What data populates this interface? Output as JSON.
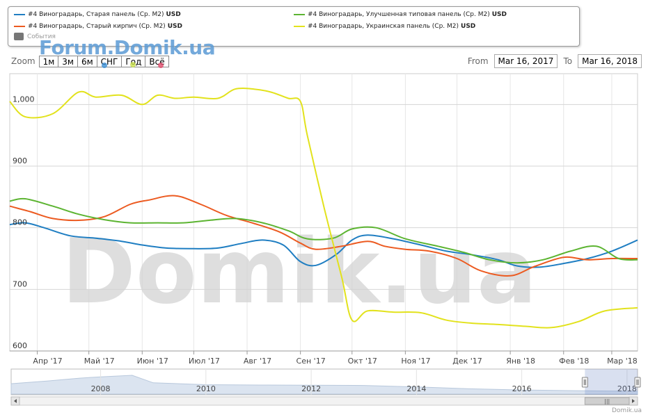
{
  "legend": {
    "items": [
      {
        "label": "#4 Виноградарь, Старая панель (Ср. М2)",
        "unit": "USD",
        "color": "#1f7ec2"
      },
      {
        "label": "#4 Виноградарь, Старый кирпич (Ср. М2)",
        "unit": "USD",
        "color": "#ec5a20"
      },
      {
        "label": "#4 Виноградарь, Улучшенная типовая панель (Ср. М2)",
        "unit": "USD",
        "color": "#5cb431"
      },
      {
        "label": "#4 Виноградарь, Украинская панель (Ср. М2)",
        "unit": "USD",
        "color": "#e2e21c"
      }
    ],
    "events_label": "События"
  },
  "watermark_small": "Forum.Domik.ua",
  "watermark_big": "Domik.ua",
  "zoom": {
    "label": "Zoom",
    "buttons": [
      "1м",
      "3м",
      "6м",
      "СНГ",
      "Год",
      "Всё"
    ]
  },
  "range": {
    "from_label": "From",
    "from_value": "Mar 16, 2017",
    "to_label": "To",
    "to_value": "Mar 16, 2018"
  },
  "credit": "Domik.ua",
  "chart_data": {
    "type": "line",
    "x_ticks": [
      "Апр '17",
      "Май '17",
      "Июн '17",
      "Июл '17",
      "Авг '17",
      "Сен '17",
      "Окт '17",
      "Ноя '17",
      "Дек '17",
      "Янв '18",
      "Фев '18",
      "Мар '18"
    ],
    "x_tick_dates": [
      "2017-04-01",
      "2017-05-01",
      "2017-06-01",
      "2017-07-01",
      "2017-08-01",
      "2017-09-01",
      "2017-10-01",
      "2017-11-01",
      "2017-12-01",
      "2018-01-01",
      "2018-02-01",
      "2018-03-01"
    ],
    "x_range": [
      "2017-03-16",
      "2018-03-16"
    ],
    "y_ticks": [
      "600",
      "700",
      "800",
      "900",
      "1,000"
    ],
    "y_values": [
      600,
      700,
      800,
      900,
      1000
    ],
    "ylim": [
      600,
      1050
    ],
    "grid": true,
    "legend_position": "top",
    "series": [
      {
        "name": "#4 Виноградарь, Старая панель (Ср. М2) USD",
        "color": "#1f7ec2",
        "dates": [
          "2017-03-16",
          "2017-03-25",
          "2017-04-05",
          "2017-04-20",
          "2017-05-05",
          "2017-05-20",
          "2017-06-01",
          "2017-06-15",
          "2017-07-01",
          "2017-07-15",
          "2017-07-28",
          "2017-08-10",
          "2017-08-22",
          "2017-09-01",
          "2017-09-10",
          "2017-09-22",
          "2017-10-01",
          "2017-10-10",
          "2017-10-25",
          "2017-11-10",
          "2017-11-25",
          "2017-12-10",
          "2017-12-25",
          "2018-01-05",
          "2018-01-18",
          "2018-02-01",
          "2018-02-15",
          "2018-03-01",
          "2018-03-16"
        ],
        "values": [
          805,
          808,
          800,
          787,
          783,
          778,
          772,
          767,
          766,
          767,
          774,
          780,
          772,
          745,
          739,
          757,
          780,
          788,
          782,
          772,
          762,
          756,
          748,
          738,
          736,
          742,
          750,
          762,
          780
        ]
      },
      {
        "name": "#4 Виноградарь, Старый кирпич (Ср. М2) USD",
        "color": "#ec5a20",
        "dates": [
          "2017-03-16",
          "2017-03-28",
          "2017-04-10",
          "2017-04-25",
          "2017-05-10",
          "2017-05-25",
          "2017-06-05",
          "2017-06-20",
          "2017-07-05",
          "2017-07-20",
          "2017-08-05",
          "2017-08-20",
          "2017-09-01",
          "2017-09-10",
          "2017-09-25",
          "2017-10-10",
          "2017-10-20",
          "2017-11-01",
          "2017-11-15",
          "2017-12-01",
          "2017-12-15",
          "2018-01-01",
          "2018-01-15",
          "2018-02-01",
          "2018-02-15",
          "2018-03-01",
          "2018-03-16"
        ],
        "values": [
          835,
          826,
          815,
          812,
          818,
          838,
          845,
          852,
          838,
          820,
          807,
          793,
          775,
          765,
          770,
          778,
          770,
          765,
          762,
          750,
          730,
          722,
          737,
          752,
          748,
          750,
          750
        ]
      },
      {
        "name": "#4 Виноградарь, Улучшенная типовая панель (Ср. М2) USD",
        "color": "#5cb431",
        "dates": [
          "2017-03-16",
          "2017-03-25",
          "2017-04-10",
          "2017-04-25",
          "2017-05-10",
          "2017-05-25",
          "2017-06-10",
          "2017-06-25",
          "2017-07-10",
          "2017-07-25",
          "2017-08-10",
          "2017-08-25",
          "2017-09-05",
          "2017-09-20",
          "2017-10-01",
          "2017-10-15",
          "2017-11-01",
          "2017-11-20",
          "2017-12-05",
          "2017-12-20",
          "2018-01-05",
          "2018-01-20",
          "2018-02-05",
          "2018-02-20",
          "2018-03-05",
          "2018-03-16"
        ],
        "values": [
          843,
          847,
          835,
          822,
          813,
          808,
          808,
          808,
          812,
          815,
          808,
          795,
          782,
          783,
          798,
          800,
          782,
          770,
          760,
          748,
          743,
          748,
          762,
          770,
          750,
          748
        ]
      },
      {
        "name": "#4 Виноградарь, Украинская панель (Ср. М2) USD",
        "color": "#e2e21c",
        "dates": [
          "2017-03-16",
          "2017-03-25",
          "2017-04-10",
          "2017-04-25",
          "2017-05-05",
          "2017-05-20",
          "2017-06-01",
          "2017-06-10",
          "2017-06-20",
          "2017-07-01",
          "2017-07-15",
          "2017-07-25",
          "2017-08-05",
          "2017-08-15",
          "2017-08-25",
          "2017-09-01",
          "2017-09-05",
          "2017-09-15",
          "2017-09-25",
          "2017-10-01",
          "2017-10-10",
          "2017-10-25",
          "2017-11-10",
          "2017-11-25",
          "2017-12-10",
          "2017-12-25",
          "2018-01-10",
          "2018-01-25",
          "2018-02-10",
          "2018-02-25",
          "2018-03-16"
        ],
        "values": [
          1005,
          980,
          985,
          1020,
          1012,
          1015,
          1000,
          1015,
          1010,
          1012,
          1010,
          1025,
          1025,
          1020,
          1010,
          1005,
          950,
          830,
          720,
          650,
          665,
          663,
          662,
          650,
          645,
          643,
          640,
          638,
          648,
          665,
          670
        ]
      }
    ]
  },
  "navigator": {
    "year_labels": [
      "2008",
      "2010",
      "2012",
      "2014",
      "2016",
      "2018"
    ],
    "year_values": [
      2008,
      2010,
      2012,
      2014,
      2016,
      2018
    ],
    "range": [
      2006.3,
      2018.2
    ],
    "selected": [
      2017.2,
      2018.2
    ],
    "handle_glyph": "|||"
  }
}
